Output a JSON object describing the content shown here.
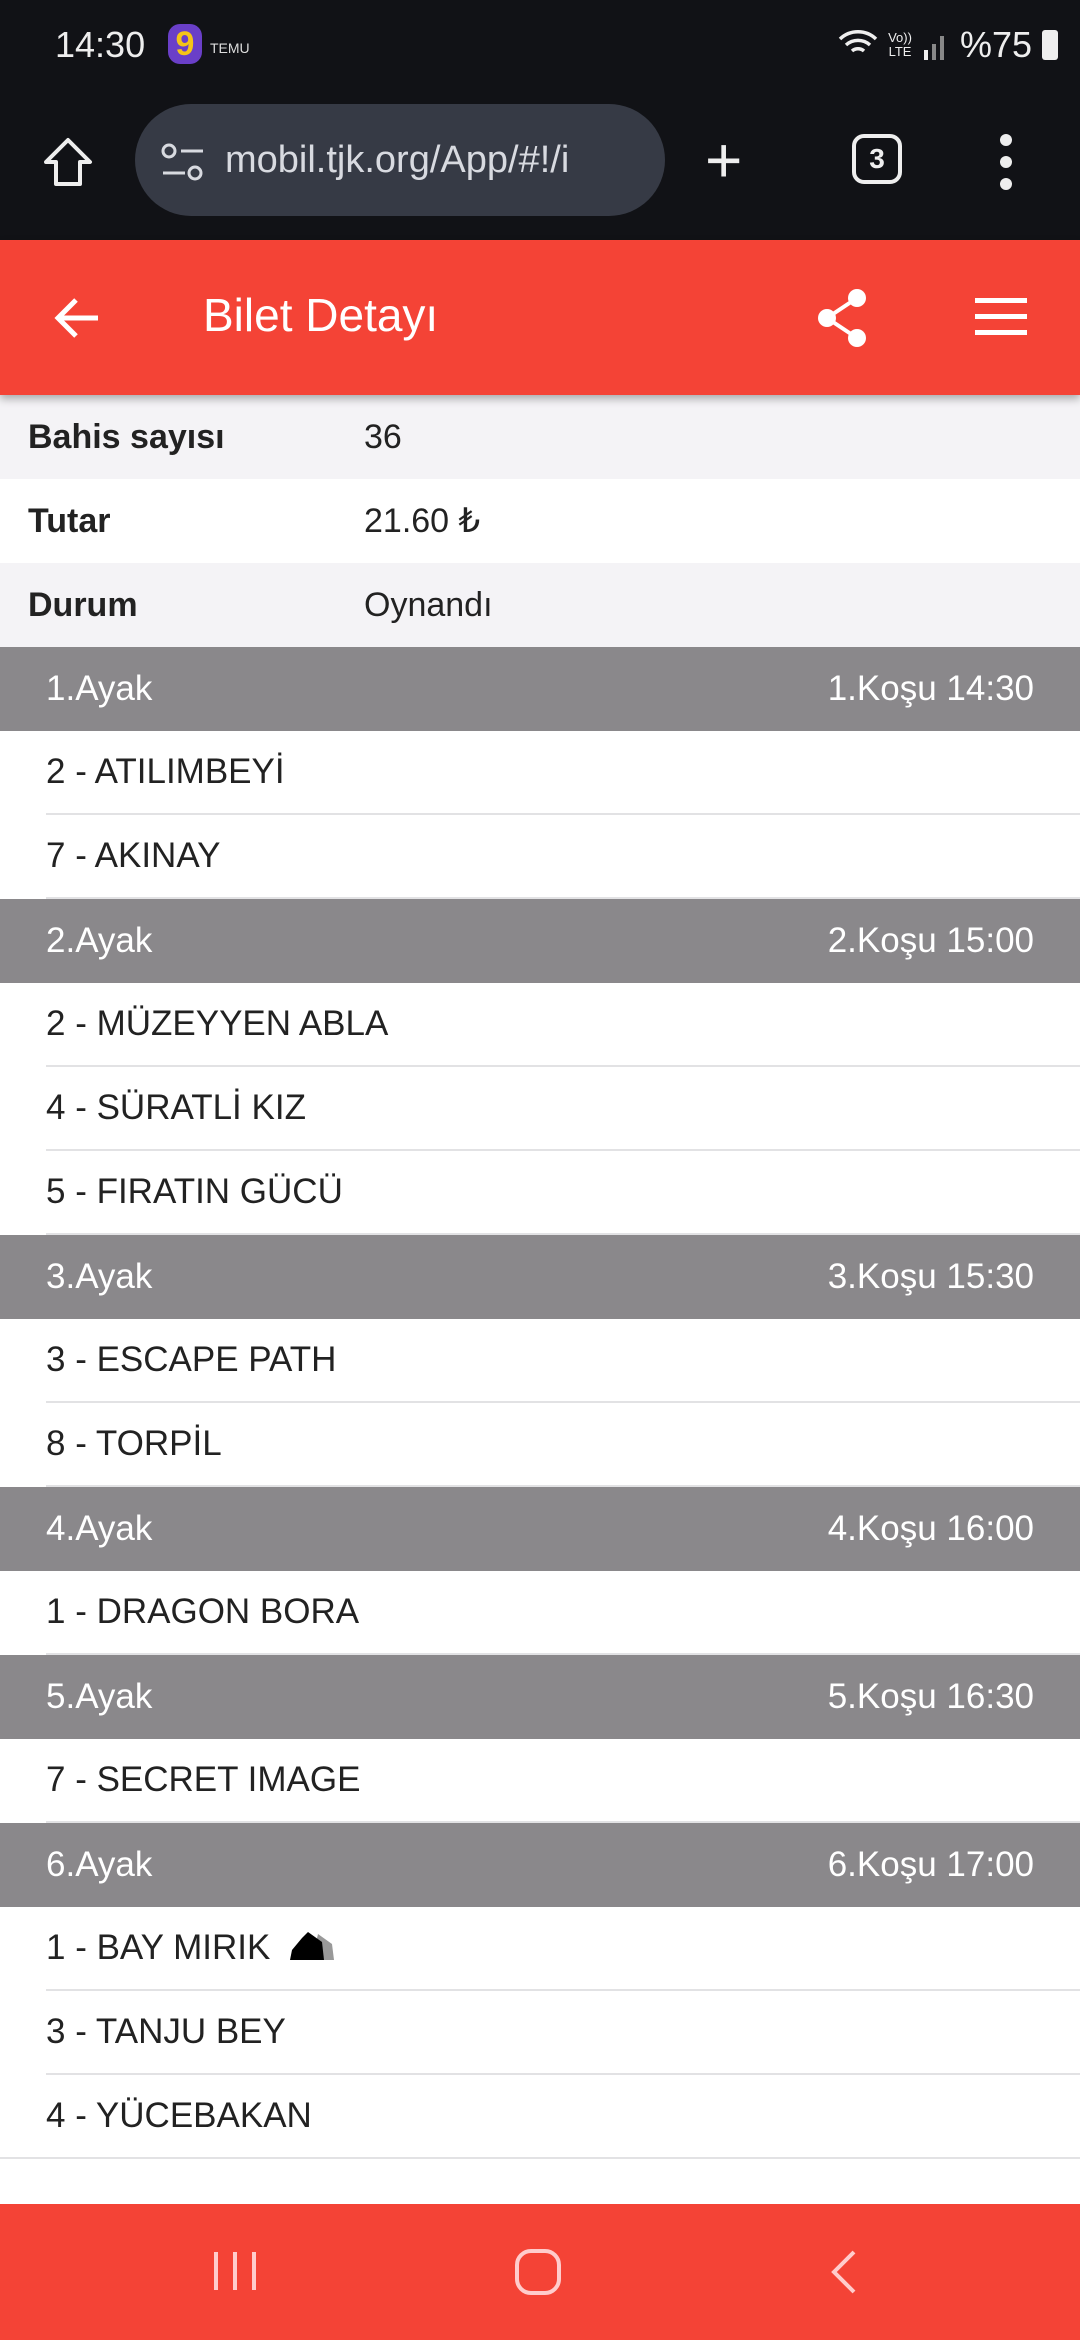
{
  "status_bar": {
    "time": "14:30",
    "notification_app": "TEMU",
    "battery": "%75",
    "network": "LTE"
  },
  "browser": {
    "url": "mobil.tjk.org/App/#!/i",
    "tab_count": "3"
  },
  "app_bar": {
    "title": "Bilet Detayı"
  },
  "info": [
    {
      "label": "Bahis sayısı",
      "value": "36"
    },
    {
      "label": "Tutar",
      "value": "21.60 ₺"
    },
    {
      "label": "Durum",
      "value": "Oynandı"
    }
  ],
  "legs": [
    {
      "leg": "1.Ayak",
      "race": "1.Koşu 14:30",
      "horses": [
        "2 - ATILIMBEYİ",
        "7 - AKINAY"
      ]
    },
    {
      "leg": "2.Ayak",
      "race": "2.Koşu 15:00",
      "horses": [
        "2 - MÜZEYYEN ABLA",
        "4 - SÜRATLİ KIZ",
        "5 - FIRATIN GÜCÜ"
      ]
    },
    {
      "leg": "3.Ayak",
      "race": "3.Koşu 15:30",
      "horses": [
        "3 - ESCAPE PATH",
        "8 - TORPİL"
      ]
    },
    {
      "leg": "4.Ayak",
      "race": "4.Koşu 16:00",
      "horses": [
        "1 - DRAGON BORA"
      ]
    },
    {
      "leg": "5.Ayak",
      "race": "5.Koşu 16:30",
      "horses": [
        "7 - SECRET IMAGE"
      ]
    },
    {
      "leg": "6.Ayak",
      "race": "6.Koşu 17:00",
      "horses": [
        "1 - BAY MIRIK",
        "3 - TANJU BEY",
        "4 - YÜCEBAKAN"
      ]
    }
  ],
  "colors": {
    "accent": "#f44336",
    "section_header": "#8a888b"
  }
}
